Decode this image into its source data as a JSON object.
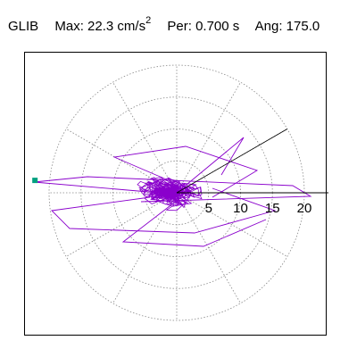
{
  "header": {
    "station": "GLIB",
    "max_label": "Max:",
    "max_value": "22.3",
    "max_unit": "cm/s",
    "max_unit_exp": "2",
    "per_label": "Per:",
    "per_value": "0.700 s",
    "ang_label": "Ang:",
    "ang_value": "175.0"
  },
  "chart_data": {
    "type": "scatter",
    "description_source": "polar particle-motion plot",
    "radial_ticks": [
      "5",
      "10",
      "15",
      "20"
    ],
    "radial_values": [
      5,
      10,
      15,
      20
    ],
    "rmax": 20,
    "max_amplitude": 22.3,
    "max_angle_deg": 175.0,
    "grid": true,
    "angular_grid_step_deg": 30,
    "series_color": "#8a00cc",
    "marker_color": "#00a080"
  }
}
